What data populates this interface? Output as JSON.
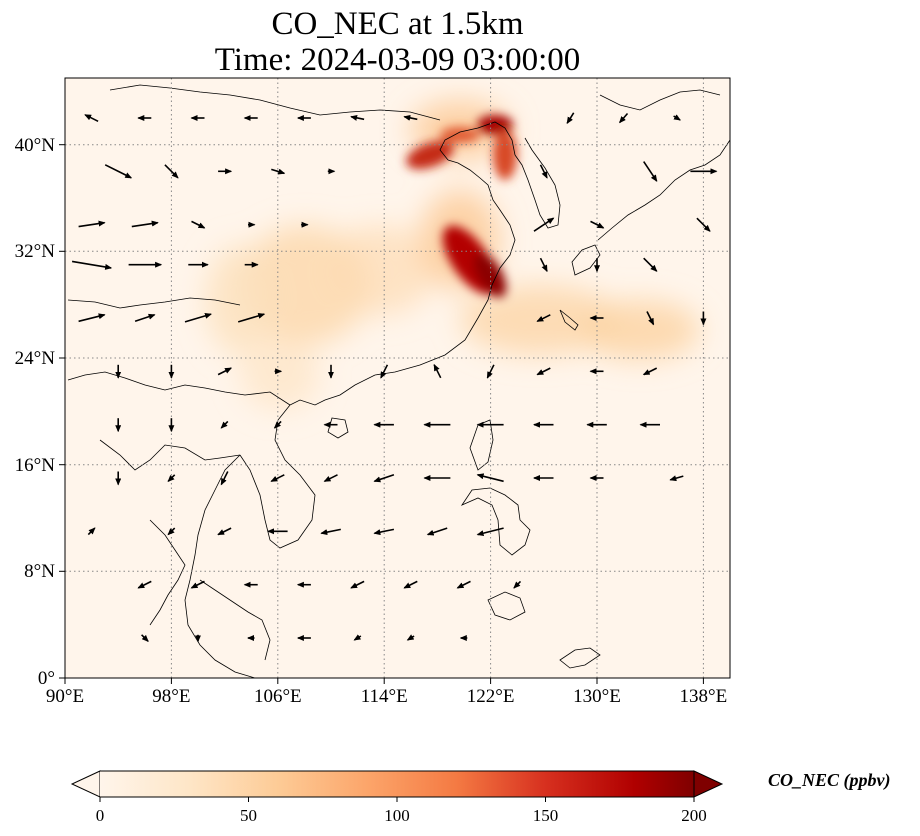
{
  "title": {
    "line1": "CO_NEC at 1.5km",
    "line2": "Time: 2024-03-09 03:00:00"
  },
  "axes": {
    "x_ticks": [
      "90°E",
      "98°E",
      "106°E",
      "114°E",
      "122°E",
      "130°E",
      "138°E"
    ],
    "y_ticks": [
      "0°",
      "8°N",
      "16°N",
      "24°N",
      "32°N",
      "40°N"
    ],
    "lon_range": [
      90,
      140
    ],
    "lat_range": [
      0,
      45
    ],
    "grid": "dotted"
  },
  "colorbar": {
    "label": "CO_NEC (ppbv)",
    "ticks": [
      "0",
      "50",
      "100",
      "150",
      "200"
    ],
    "range": [
      0,
      200
    ],
    "colormap": "OrRd",
    "extend": "both"
  },
  "colors": {
    "background_low": "#fff5eb",
    "high": "#800000",
    "coast": "#000000"
  },
  "plumes": [
    {
      "lon": 120.0,
      "lat": 31.2,
      "value": 200
    },
    {
      "lon": 119.3,
      "lat": 33.3,
      "value": 185
    },
    {
      "lon": 118.0,
      "lat": 39.2,
      "value": 150
    },
    {
      "lon": 121.5,
      "lat": 40.5,
      "value": 190
    },
    {
      "lon": 121.5,
      "lat": 38.5,
      "value": 110
    },
    {
      "lon": 108.0,
      "lat": 29.5,
      "value": 40
    },
    {
      "lon": 124.0,
      "lat": 27.0,
      "value": 45
    },
    {
      "lon": 133.0,
      "lat": 27.5,
      "value": 35
    },
    {
      "lon": 110.0,
      "lat": 25.5,
      "value": 30
    }
  ],
  "wind_vectors": [
    {
      "lon": 92,
      "lat": 42,
      "u": -1,
      "v": 0.5
    },
    {
      "lon": 96,
      "lat": 42,
      "u": -1,
      "v": 0
    },
    {
      "lon": 100,
      "lat": 42,
      "u": -1,
      "v": 0
    },
    {
      "lon": 104,
      "lat": 42,
      "u": -1,
      "v": 0
    },
    {
      "lon": 108,
      "lat": 42,
      "u": -1,
      "v": 0
    },
    {
      "lon": 112,
      "lat": 42,
      "u": -1,
      "v": 0.2
    },
    {
      "lon": 116,
      "lat": 42,
      "u": -1,
      "v": 0.2
    },
    {
      "lon": 128,
      "lat": 42,
      "u": -0.5,
      "v": -0.8
    },
    {
      "lon": 132,
      "lat": 42,
      "u": -0.6,
      "v": -0.7
    },
    {
      "lon": 136,
      "lat": 42,
      "u": 0.5,
      "v": -0.3
    },
    {
      "lon": 94,
      "lat": 38,
      "u": 2,
      "v": -1
    },
    {
      "lon": 98,
      "lat": 38,
      "u": 1,
      "v": -1
    },
    {
      "lon": 102,
      "lat": 38,
      "u": 1,
      "v": 0
    },
    {
      "lon": 106,
      "lat": 38,
      "u": 1,
      "v": -0.3
    },
    {
      "lon": 110,
      "lat": 38,
      "u": 0.5,
      "v": 0
    },
    {
      "lon": 126,
      "lat": 38,
      "u": 0.5,
      "v": -1
    },
    {
      "lon": 134,
      "lat": 38,
      "u": 1,
      "v": -1.5
    },
    {
      "lon": 138,
      "lat": 38,
      "u": 2,
      "v": 0
    },
    {
      "lon": 92,
      "lat": 34,
      "u": 2,
      "v": 0.3
    },
    {
      "lon": 96,
      "lat": 34,
      "u": 2,
      "v": 0.3
    },
    {
      "lon": 100,
      "lat": 34,
      "u": 1,
      "v": -0.5
    },
    {
      "lon": 104,
      "lat": 34,
      "u": 0.5,
      "v": 0
    },
    {
      "lon": 108,
      "lat": 34,
      "u": 0.5,
      "v": 0
    },
    {
      "lon": 126,
      "lat": 34,
      "u": 1.5,
      "v": 1
    },
    {
      "lon": 130,
      "lat": 34,
      "u": 1,
      "v": -0.5
    },
    {
      "lon": 138,
      "lat": 34,
      "u": 1,
      "v": -1
    },
    {
      "lon": 92,
      "lat": 31,
      "u": 3,
      "v": -0.5
    },
    {
      "lon": 96,
      "lat": 31,
      "u": 2.5,
      "v": 0
    },
    {
      "lon": 100,
      "lat": 31,
      "u": 1.5,
      "v": 0
    },
    {
      "lon": 104,
      "lat": 31,
      "u": 1,
      "v": 0
    },
    {
      "lon": 126,
      "lat": 31,
      "u": 0.5,
      "v": -1
    },
    {
      "lon": 130,
      "lat": 31,
      "u": 0,
      "v": -1
    },
    {
      "lon": 134,
      "lat": 31,
      "u": 1,
      "v": -1
    },
    {
      "lon": 92,
      "lat": 27,
      "u": 2,
      "v": 0.5
    },
    {
      "lon": 96,
      "lat": 27,
      "u": 1.5,
      "v": 0.5
    },
    {
      "lon": 100,
      "lat": 27,
      "u": 2,
      "v": 0.6
    },
    {
      "lon": 104,
      "lat": 27,
      "u": 2,
      "v": 0.6
    },
    {
      "lon": 126,
      "lat": 27,
      "u": -1,
      "v": -0.5
    },
    {
      "lon": 130,
      "lat": 27,
      "u": -1,
      "v": 0
    },
    {
      "lon": 134,
      "lat": 27,
      "u": 0.5,
      "v": -1
    },
    {
      "lon": 138,
      "lat": 27,
      "u": 0,
      "v": -1
    },
    {
      "lon": 94,
      "lat": 23,
      "u": 0,
      "v": -1
    },
    {
      "lon": 98,
      "lat": 23,
      "u": 0,
      "v": -1
    },
    {
      "lon": 102,
      "lat": 23,
      "u": 1,
      "v": 0.5
    },
    {
      "lon": 106,
      "lat": 23,
      "u": 0.5,
      "v": 0
    },
    {
      "lon": 110,
      "lat": 23,
      "u": 0,
      "v": -1
    },
    {
      "lon": 114,
      "lat": 23,
      "u": -0.5,
      "v": -1
    },
    {
      "lon": 118,
      "lat": 23,
      "u": -0.5,
      "v": 1
    },
    {
      "lon": 122,
      "lat": 23,
      "u": -0.5,
      "v": -1
    },
    {
      "lon": 126,
      "lat": 23,
      "u": -1,
      "v": -0.5
    },
    {
      "lon": 130,
      "lat": 23,
      "u": -1,
      "v": 0
    },
    {
      "lon": 134,
      "lat": 23,
      "u": -1,
      "v": -0.5
    },
    {
      "lon": 94,
      "lat": 19,
      "u": 0,
      "v": -1
    },
    {
      "lon": 98,
      "lat": 19,
      "u": 0,
      "v": -1
    },
    {
      "lon": 102,
      "lat": 19,
      "u": -0.5,
      "v": -0.5
    },
    {
      "lon": 106,
      "lat": 19,
      "u": -0.5,
      "v": -0.5
    },
    {
      "lon": 110,
      "lat": 19,
      "u": -1,
      "v": 0
    },
    {
      "lon": 114,
      "lat": 19,
      "u": -1.5,
      "v": 0
    },
    {
      "lon": 118,
      "lat": 19,
      "u": -2,
      "v": 0
    },
    {
      "lon": 122,
      "lat": 19,
      "u": -2,
      "v": 0
    },
    {
      "lon": 126,
      "lat": 19,
      "u": -1.5,
      "v": 0
    },
    {
      "lon": 130,
      "lat": 19,
      "u": -1.5,
      "v": 0
    },
    {
      "lon": 134,
      "lat": 19,
      "u": -1.5,
      "v": 0
    },
    {
      "lon": 94,
      "lat": 15,
      "u": 0,
      "v": -1
    },
    {
      "lon": 98,
      "lat": 15,
      "u": -0.5,
      "v": -0.5
    },
    {
      "lon": 102,
      "lat": 15,
      "u": -0.5,
      "v": -1
    },
    {
      "lon": 106,
      "lat": 15,
      "u": -1,
      "v": -0.5
    },
    {
      "lon": 110,
      "lat": 15,
      "u": -1,
      "v": -0.5
    },
    {
      "lon": 114,
      "lat": 15,
      "u": -1.5,
      "v": -0.5
    },
    {
      "lon": 118,
      "lat": 15,
      "u": -2,
      "v": 0
    },
    {
      "lon": 122,
      "lat": 15,
      "u": -2,
      "v": 0.5
    },
    {
      "lon": 126,
      "lat": 15,
      "u": -1.5,
      "v": 0
    },
    {
      "lon": 130,
      "lat": 15,
      "u": -1,
      "v": 0
    },
    {
      "lon": 136,
      "lat": 15,
      "u": -1,
      "v": -0.3
    },
    {
      "lon": 92,
      "lat": 11,
      "u": 0.5,
      "v": 0.5
    },
    {
      "lon": 98,
      "lat": 11,
      "u": -0.5,
      "v": -0.5
    },
    {
      "lon": 102,
      "lat": 11,
      "u": -1,
      "v": -0.5
    },
    {
      "lon": 106,
      "lat": 11,
      "u": -1.5,
      "v": 0
    },
    {
      "lon": 110,
      "lat": 11,
      "u": -1.5,
      "v": -0.3
    },
    {
      "lon": 114,
      "lat": 11,
      "u": -1.5,
      "v": -0.3
    },
    {
      "lon": 118,
      "lat": 11,
      "u": -1.5,
      "v": -0.5
    },
    {
      "lon": 122,
      "lat": 11,
      "u": -2,
      "v": -0.5
    },
    {
      "lon": 96,
      "lat": 7,
      "u": -1,
      "v": -0.5
    },
    {
      "lon": 100,
      "lat": 7,
      "u": -1,
      "v": -0.5
    },
    {
      "lon": 104,
      "lat": 7,
      "u": -1,
      "v": 0
    },
    {
      "lon": 108,
      "lat": 7,
      "u": -1,
      "v": 0
    },
    {
      "lon": 112,
      "lat": 7,
      "u": -1,
      "v": -0.5
    },
    {
      "lon": 116,
      "lat": 7,
      "u": -1,
      "v": -0.5
    },
    {
      "lon": 120,
      "lat": 7,
      "u": -1,
      "v": -0.5
    },
    {
      "lon": 124,
      "lat": 7,
      "u": -0.5,
      "v": -0.5
    },
    {
      "lon": 96,
      "lat": 3,
      "u": 0.5,
      "v": -0.5
    },
    {
      "lon": 100,
      "lat": 3,
      "u": 0,
      "v": -0.5
    },
    {
      "lon": 104,
      "lat": 3,
      "u": -0.5,
      "v": 0
    },
    {
      "lon": 108,
      "lat": 3,
      "u": -1,
      "v": 0
    },
    {
      "lon": 112,
      "lat": 3,
      "u": -0.5,
      "v": -0.3
    },
    {
      "lon": 116,
      "lat": 3,
      "u": -0.5,
      "v": -0.3
    },
    {
      "lon": 120,
      "lat": 3,
      "u": -0.5,
      "v": 0
    }
  ]
}
